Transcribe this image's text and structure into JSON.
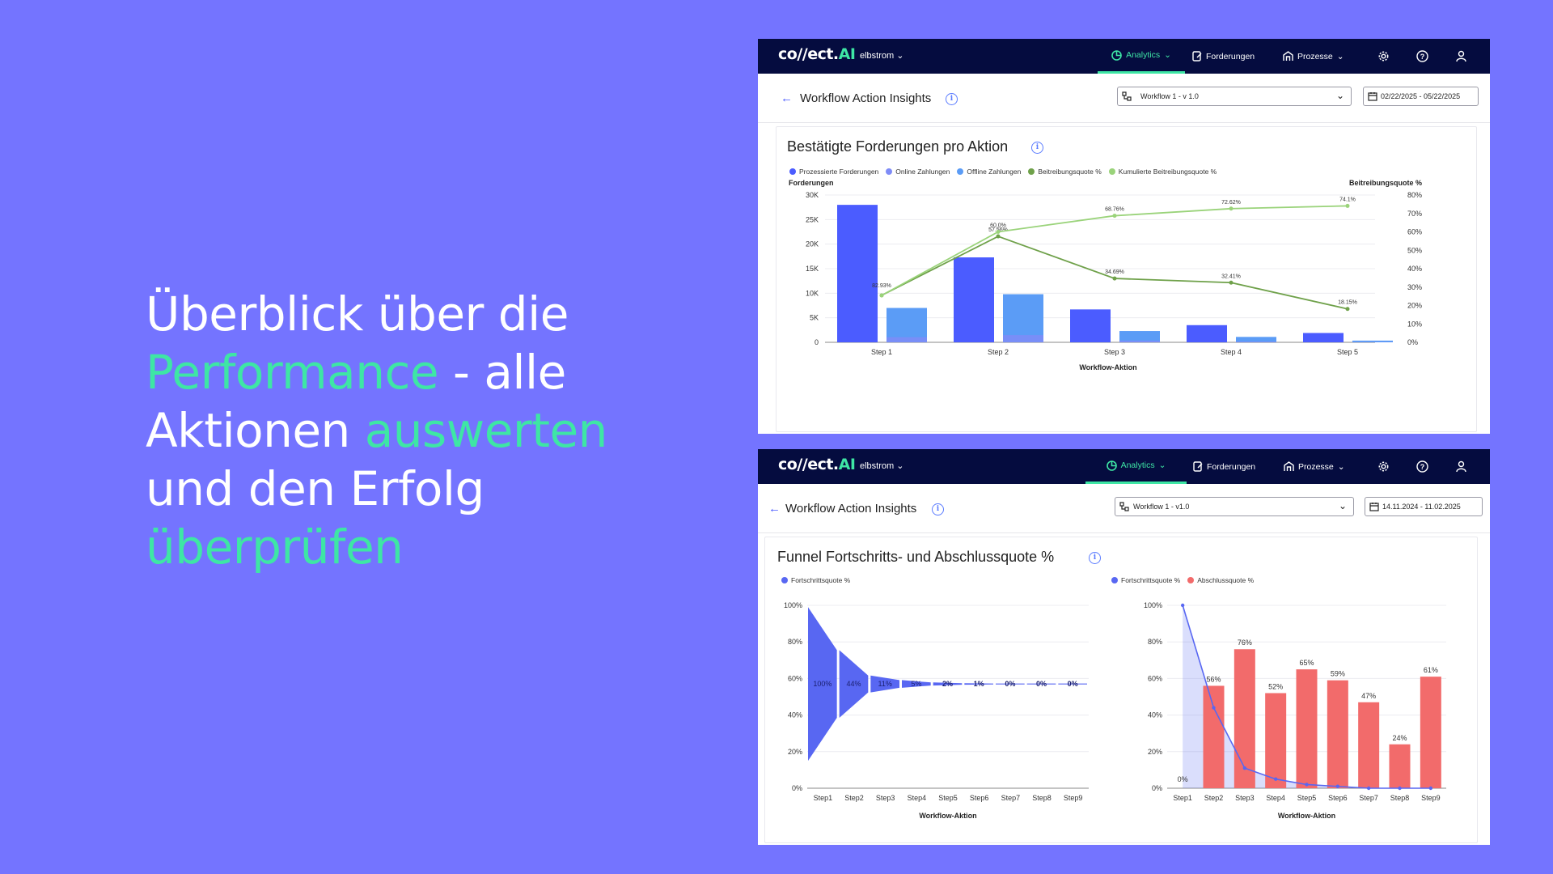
{
  "headline": {
    "part1": "Überblick über die",
    "part2": "Performance",
    "part3": " - alle",
    "part4": "Aktionen ",
    "part5": "auswerten",
    "part6": "und den Erfolg",
    "part7": "überprüfen"
  },
  "colors": {
    "background": "#7474ff",
    "accent": "#3ee6a5",
    "nav_bg": "#050c3f",
    "bar_dark": "#4b5cff",
    "bar_light": "#5b9cf6",
    "bar_offline": "#7f8cf7",
    "line_dark": "#6fa14a",
    "line_light": "#9ad37a",
    "red": "#f26b6b"
  },
  "app": {
    "logo_main": "co//ect.",
    "logo_ai": "AI",
    "tenant": "elbstrom",
    "nav": {
      "analytics": "Analytics",
      "forderungen": "Forderungen",
      "prozesse": "Prozesse"
    },
    "icons": [
      "analytics-icon",
      "forderungen-icon",
      "prozesse-icon",
      "gear-icon",
      "help-icon",
      "user-icon"
    ]
  },
  "panel1": {
    "page_title": "Workflow Action Insights",
    "workflow_select": "Workflow 1 - v 1.0",
    "date_range": "02/22/2025 - 05/22/2025",
    "card_title": "Bestätigte Forderungen pro Aktion"
  },
  "panel2": {
    "page_title": "Workflow Action Insights",
    "workflow_select": "Workflow 1 - v1.0",
    "date_range": "14.11.2024 - 11.02.2025",
    "card_title": "Funnel Fortschritts- und Abschlussquote %"
  },
  "chart_data": [
    {
      "type": "bar",
      "title": "Bestätigte Forderungen pro Aktion",
      "xlabel": "Workflow-Aktion",
      "ylabel": "Forderungen",
      "y2label": "Beitreibungsquote %",
      "ylim": [
        0,
        30000
      ],
      "y2lim": [
        0,
        80
      ],
      "yticks": [
        "30K",
        "25K",
        "20K",
        "15K",
        "10K",
        "5K",
        "0"
      ],
      "y2ticks": [
        "80%",
        "70%",
        "60%",
        "50%",
        "40%",
        "30%",
        "20%",
        "10%",
        "0%"
      ],
      "categories": [
        "Step 1",
        "Step 2",
        "Step 3",
        "Step 4",
        "Step 5"
      ],
      "legend_position": "top-left",
      "series": [
        {
          "name": "Prozessierte Forderungen",
          "kind": "bar",
          "color": "#4b5cff",
          "values": [
            28000,
            17300,
            6700,
            3500,
            1900
          ]
        },
        {
          "name": "Online Zahlungen",
          "kind": "bar",
          "color": "#7f8cf7",
          "values": [
            0,
            0,
            0,
            0,
            0
          ]
        },
        {
          "name": "Offline Zahlungen",
          "kind": "bar",
          "color": "#5b9cf6",
          "values": [
            7000,
            9800,
            2300,
            1100,
            350
          ]
        },
        {
          "name": "Beitreibungsquote %",
          "kind": "line",
          "color": "#6fa14a",
          "values": [
            25.5,
            57.56,
            34.69,
            32.41,
            18.15
          ],
          "labels": [
            "",
            "57.56%",
            "34.69%",
            "32.41%",
            "18.15%"
          ]
        },
        {
          "name": "Kumulierte Beitreibungsquote %",
          "kind": "line",
          "color": "#9ad37a",
          "values": [
            25.5,
            60.0,
            68.76,
            72.62,
            74.1
          ],
          "labels": [
            "",
            "60.0%",
            "68.76%",
            "72.62%",
            "74.1%"
          ]
        }
      ],
      "extra_label": "82.93%"
    },
    {
      "type": "area",
      "title": "",
      "xlabel": "Workflow-Aktion",
      "ylim": [
        0,
        100
      ],
      "yticks": [
        "100%",
        "80%",
        "60%",
        "40%",
        "20%",
        "0%"
      ],
      "categories": [
        "Step1",
        "Step2",
        "Step3",
        "Step4",
        "Step5",
        "Step6",
        "Step7",
        "Step8",
        "Step9"
      ],
      "legend_position": "top-left",
      "series": [
        {
          "name": "Fortschrittsquote %",
          "color": "#5867f2",
          "values": [
            100,
            44,
            11,
            5,
            2,
            1,
            0,
            0,
            0
          ],
          "labels": [
            "100%",
            "44%",
            "11%",
            "5%",
            "2%",
            "1%",
            "0%",
            "0%",
            "0%"
          ]
        }
      ]
    },
    {
      "type": "bar",
      "title": "",
      "xlabel": "Workflow-Aktion",
      "ylim": [
        0,
        100
      ],
      "yticks": [
        "100%",
        "80%",
        "60%",
        "40%",
        "20%",
        "0%"
      ],
      "categories": [
        "Step1",
        "Step2",
        "Step3",
        "Step4",
        "Step5",
        "Step6",
        "Step7",
        "Step8",
        "Step9"
      ],
      "legend_position": "top-left",
      "series": [
        {
          "name": "Fortschrittsquote %",
          "kind": "area",
          "color": "#5867f2",
          "values": [
            100,
            44,
            11,
            5,
            2,
            1,
            0,
            0,
            0
          ]
        },
        {
          "name": "Abschlussquote %",
          "kind": "bar",
          "color": "#f26b6b",
          "values": [
            0,
            56,
            76,
            52,
            65,
            59,
            47,
            24,
            61
          ],
          "labels": [
            "0%",
            "56%",
            "76%",
            "52%",
            "65%",
            "59%",
            "47%",
            "24%",
            "61%"
          ]
        }
      ]
    }
  ]
}
